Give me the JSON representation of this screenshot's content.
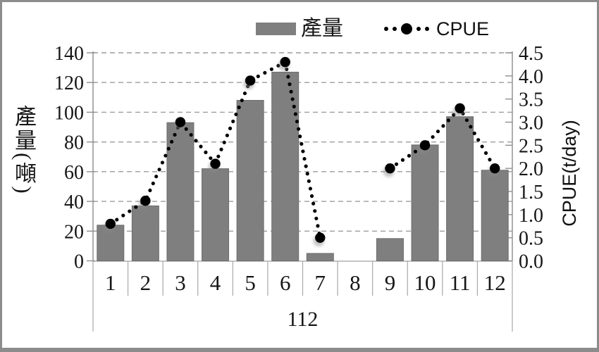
{
  "frame": {
    "border_color": "#8c8c8c",
    "background": "#ffffff"
  },
  "legend": {
    "items": [
      {
        "label": "產量",
        "type": "bar",
        "swatch_color": "#7f7f7f"
      },
      {
        "label": "CPUE",
        "type": "dotted-line",
        "color": "#000000"
      }
    ]
  },
  "left_axis": {
    "title": "產量(噸)",
    "ticks": [
      "140",
      "120",
      "100",
      "80",
      "60",
      "40",
      "20",
      "0"
    ]
  },
  "right_axis": {
    "title": "CPUE(t/day)",
    "ticks": [
      "4.5",
      "4.0",
      "3.5",
      "3.0",
      "2.5",
      "2.0",
      "1.5",
      "1.0",
      "0.5",
      "0.0"
    ]
  },
  "x_axis": {
    "month_labels": [
      "1",
      "2",
      "3",
      "4",
      "5",
      "6",
      "7",
      "8",
      "9",
      "10",
      "11",
      "12"
    ],
    "group_label": "112"
  },
  "chart_data": {
    "type": "combo",
    "categories": [
      1,
      2,
      3,
      4,
      5,
      6,
      7,
      8,
      9,
      10,
      11,
      12
    ],
    "series": [
      {
        "name": "產量",
        "type": "bar",
        "axis": "left",
        "color": "#7f7f7f",
        "values": [
          24,
          37,
          93,
          62,
          108,
          127,
          5,
          0,
          15,
          78,
          97,
          61
        ]
      },
      {
        "name": "CPUE",
        "type": "line",
        "line_style": "dotted",
        "marker": "filled-circle",
        "axis": "right",
        "color": "#000000",
        "values": [
          0.8,
          1.3,
          3.0,
          2.1,
          3.9,
          4.3,
          0.5,
          null,
          2.0,
          2.5,
          3.3,
          2.0
        ]
      }
    ],
    "title": "",
    "xlabel": "112",
    "left_ylabel": "產量(噸)",
    "right_ylabel": "CPUE(t/day)",
    "left_ylim": [
      0,
      140
    ],
    "right_ylim": [
      0,
      4.5
    ],
    "grid": "horizontal-dashed",
    "grid_color": "#9c9c9c",
    "legend_position": "top"
  }
}
